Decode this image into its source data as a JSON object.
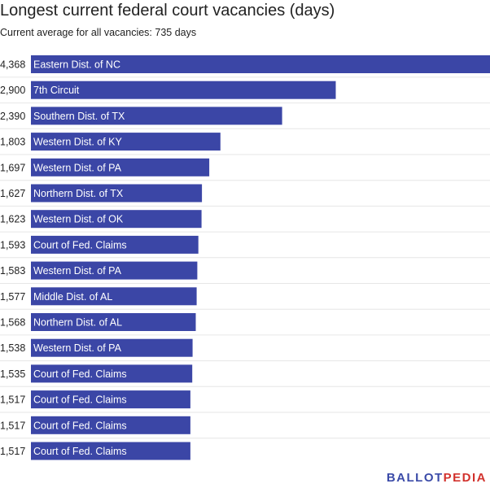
{
  "chart_data": {
    "type": "bar",
    "orientation": "horizontal",
    "title": "Longest current federal court vacancies (days)",
    "subtitle": "Current average for all vacancies: 735 days",
    "xlim": [
      0,
      4368
    ],
    "grid": false,
    "bar_color": "#3b46a6",
    "categories": [
      "Eastern Dist. of NC",
      "7th Circuit",
      "Southern Dist. of TX",
      "Western Dist. of KY",
      "Western Dist. of PA",
      "Northern Dist. of TX",
      "Western Dist. of OK",
      "Court of Fed. Claims",
      "Western Dist. of PA",
      "Middle Dist. of AL",
      "Northern Dist. of AL",
      "Western Dist. of PA",
      "Court of Fed. Claims",
      "Court of Fed. Claims",
      "Court of Fed. Claims",
      "Court of Fed. Claims"
    ],
    "values": [
      4368,
      2900,
      2390,
      1803,
      1697,
      1627,
      1623,
      1593,
      1583,
      1577,
      1568,
      1538,
      1535,
      1517,
      1517,
      1517
    ],
    "value_labels": [
      "4,368",
      "2,900",
      "2,390",
      "1,803",
      "1,697",
      "1,627",
      "1,623",
      "1,593",
      "1,583",
      "1,577",
      "1,568",
      "1,538",
      "1,535",
      "1,517",
      "1,517",
      "1,517"
    ]
  },
  "branding": {
    "logo_part1": "BALLOT",
    "logo_part2": "PEDIA",
    "color_primary": "#3b4ba8",
    "color_accent": "#d2322d"
  }
}
